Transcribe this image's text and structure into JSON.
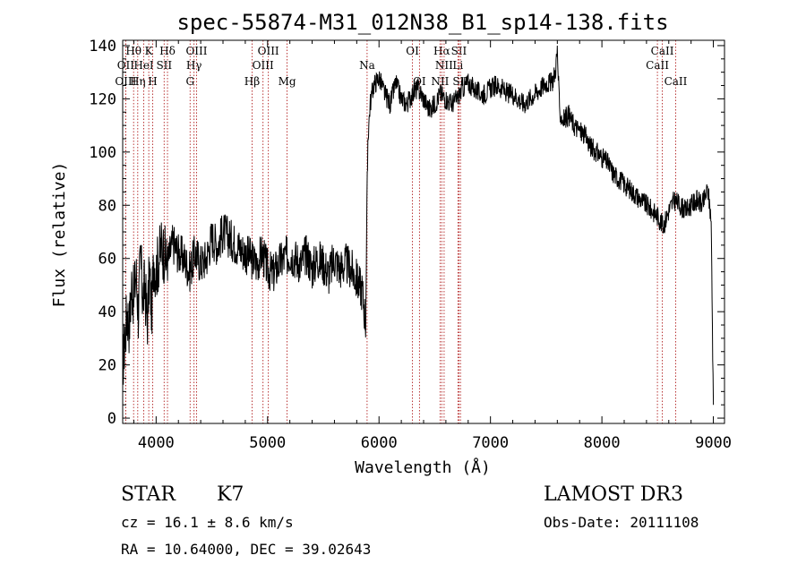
{
  "chart_data": {
    "type": "line",
    "title": "spec-55874-M31_012N38_B1_sp14-138.fits",
    "xlabel": "Wavelength (Å)",
    "ylabel": "Flux (relative)",
    "xlim": [
      3700,
      9100
    ],
    "ylim": [
      -2,
      142
    ],
    "xticks": [
      4000,
      5000,
      6000,
      7000,
      8000,
      9000
    ],
    "yticks": [
      0,
      20,
      40,
      60,
      80,
      100,
      120,
      140
    ],
    "series": [
      {
        "name": "flux",
        "x": [
          3700,
          3720,
          3740,
          3760,
          3780,
          3800,
          3820,
          3840,
          3860,
          3880,
          3900,
          3920,
          3940,
          3960,
          3980,
          4000,
          4050,
          4100,
          4150,
          4200,
          4250,
          4300,
          4350,
          4400,
          4450,
          4500,
          4550,
          4600,
          4650,
          4700,
          4750,
          4800,
          4850,
          4900,
          4950,
          5000,
          5050,
          5100,
          5150,
          5200,
          5250,
          5300,
          5350,
          5400,
          5450,
          5500,
          5550,
          5600,
          5650,
          5700,
          5750,
          5800,
          5850,
          5880,
          5900,
          5920,
          5950,
          6000,
          6050,
          6100,
          6150,
          6200,
          6250,
          6300,
          6350,
          6400,
          6450,
          6500,
          6550,
          6600,
          6650,
          6700,
          6750,
          6800,
          6850,
          6900,
          6950,
          7000,
          7050,
          7100,
          7150,
          7200,
          7250,
          7300,
          7350,
          7400,
          7450,
          7500,
          7550,
          7580,
          7600,
          7620,
          7650,
          7700,
          7750,
          7800,
          7850,
          7900,
          7950,
          8000,
          8050,
          8100,
          8150,
          8200,
          8250,
          8300,
          8350,
          8400,
          8450,
          8500,
          8550,
          8600,
          8650,
          8700,
          8750,
          8800,
          8850,
          8900,
          8950,
          8980,
          9000
        ],
        "y": [
          20,
          30,
          40,
          35,
          50,
          45,
          55,
          40,
          60,
          45,
          50,
          35,
          55,
          40,
          60,
          55,
          65,
          58,
          66,
          62,
          60,
          55,
          62,
          58,
          60,
          68,
          65,
          70,
          68,
          66,
          64,
          62,
          60,
          58,
          62,
          56,
          54,
          58,
          60,
          62,
          60,
          58,
          62,
          56,
          60,
          58,
          54,
          60,
          56,
          58,
          56,
          52,
          48,
          36,
          105,
          118,
          125,
          128,
          122,
          118,
          126,
          120,
          118,
          122,
          124,
          120,
          116,
          118,
          122,
          120,
          118,
          120,
          124,
          126,
          124,
          122,
          122,
          124,
          125,
          124,
          122,
          122,
          120,
          118,
          120,
          122,
          124,
          126,
          126,
          130,
          138,
          115,
          112,
          114,
          110,
          108,
          106,
          102,
          100,
          98,
          96,
          92,
          90,
          88,
          86,
          84,
          82,
          80,
          78,
          76,
          72,
          78,
          82,
          80,
          78,
          80,
          82,
          80,
          86,
          75,
          5
        ]
      }
    ],
    "spectral_lines": [
      {
        "name": "Hθ",
        "x": 3798,
        "row": 0
      },
      {
        "name": "OII",
        "x": 3727,
        "row": 1
      },
      {
        "name": "OIII",
        "x": 3727,
        "row": 2
      },
      {
        "name": "K",
        "x": 3934,
        "row": 0
      },
      {
        "name": "HeI",
        "x": 3889,
        "row": 1
      },
      {
        "name": "Hη",
        "x": 3835,
        "row": 2
      },
      {
        "name": "H",
        "x": 3969,
        "row": 2
      },
      {
        "name": "Hδ",
        "x": 4102,
        "row": 0
      },
      {
        "name": "SII",
        "x": 4072,
        "row": 1
      },
      {
        "name": "OIII",
        "x": 4363,
        "row": 0
      },
      {
        "name": "Hγ",
        "x": 4340,
        "row": 1
      },
      {
        "name": "G",
        "x": 4305,
        "row": 2
      },
      {
        "name": "OIII",
        "x": 5007,
        "row": 0
      },
      {
        "name": "OIII",
        "x": 4959,
        "row": 1
      },
      {
        "name": "Hβ",
        "x": 4861,
        "row": 2
      },
      {
        "name": "Mg",
        "x": 5175,
        "row": 2
      },
      {
        "name": "Na",
        "x": 5893,
        "row": 1
      },
      {
        "name": "OI",
        "x": 6300,
        "row": 0
      },
      {
        "name": "OI",
        "x": 6363,
        "row": 2
      },
      {
        "name": "Hα",
        "x": 6563,
        "row": 0
      },
      {
        "name": "SII",
        "x": 6717,
        "row": 0
      },
      {
        "name": "NII",
        "x": 6584,
        "row": 1
      },
      {
        "name": "Li",
        "x": 6708,
        "row": 1
      },
      {
        "name": "NII",
        "x": 6548,
        "row": 2
      },
      {
        "name": "SII",
        "x": 6731,
        "row": 2
      },
      {
        "name": "CaII",
        "x": 8542,
        "row": 0
      },
      {
        "name": "CaII",
        "x": 8498,
        "row": 1
      },
      {
        "name": "CaII",
        "x": 8662,
        "row": 2
      }
    ]
  },
  "info": {
    "class": "STAR",
    "subclass": "K7",
    "survey": "LAMOST DR3",
    "cz": "cz = 16.1 ± 8.6 km/s",
    "obs_date": "Obs-Date: 20111108",
    "radec": "RA =  10.64000, DEC =  39.02643"
  }
}
